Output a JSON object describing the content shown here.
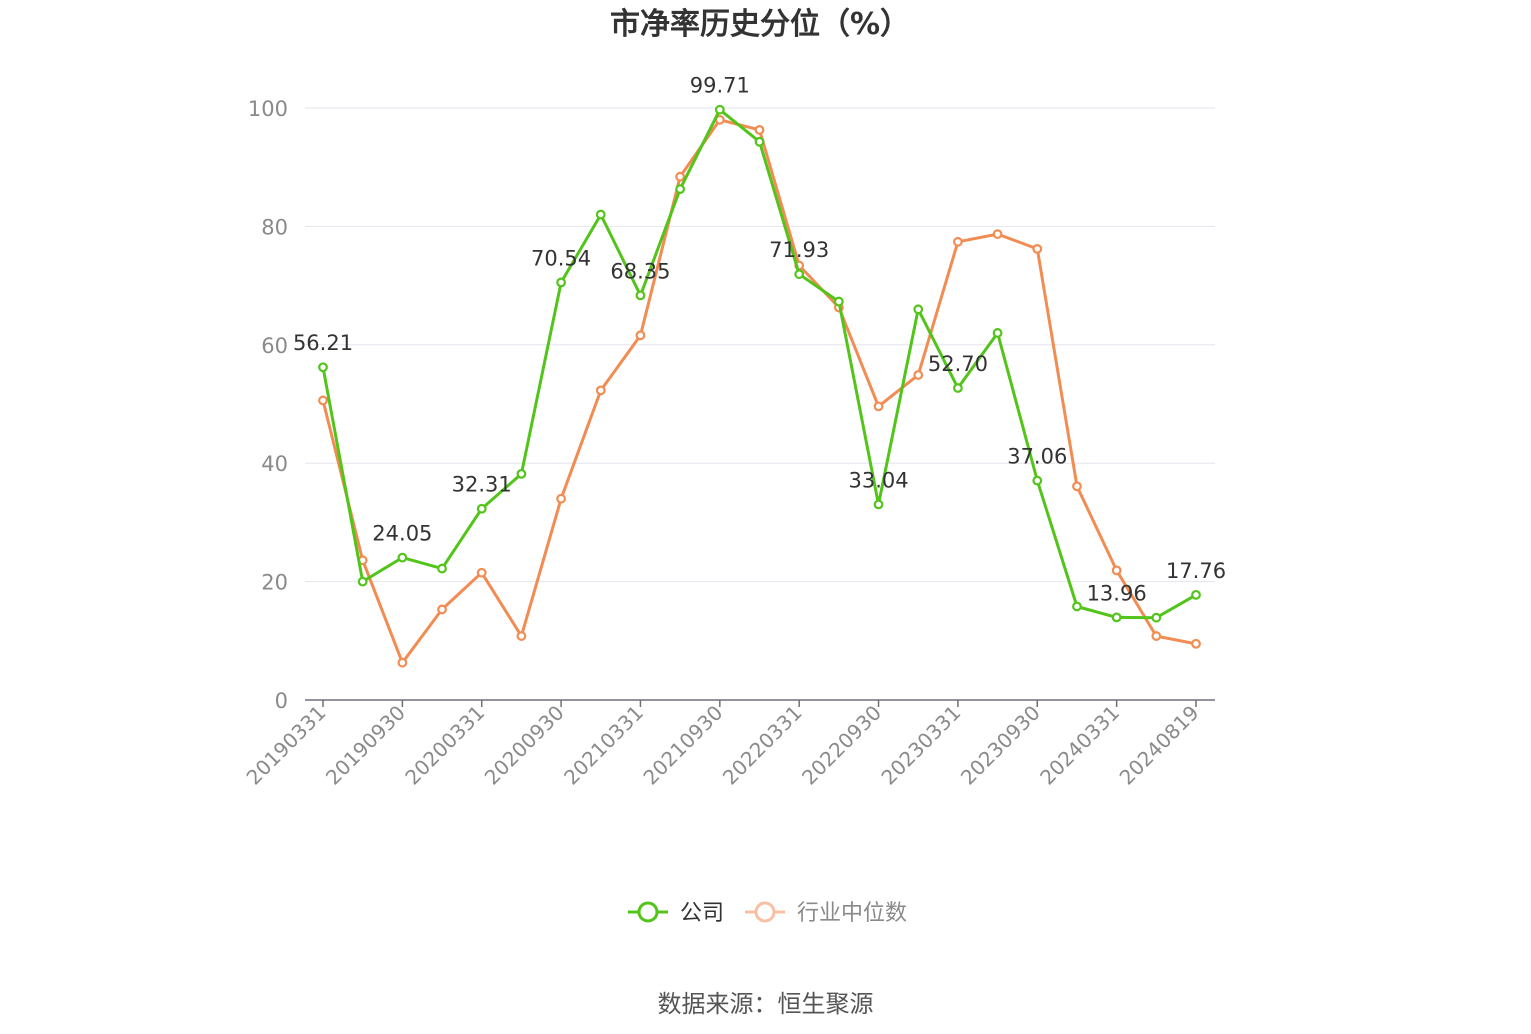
{
  "chart_data": {
    "type": "line",
    "title": "市净率历史分位（%）",
    "xlabel": "",
    "ylabel": "",
    "ylim": [
      0,
      100
    ],
    "yticks": [
      0,
      20,
      40,
      60,
      80,
      100
    ],
    "grid": true,
    "legend_position": "bottom",
    "x_tick_labels": [
      "20190331",
      "20190930",
      "20200331",
      "20200930",
      "20210331",
      "20210930",
      "20220331",
      "20220930",
      "20230331",
      "20230930",
      "20240331",
      "20240819"
    ],
    "x": [
      "20190331",
      "20190630",
      "20190930",
      "20191231",
      "20200331",
      "20200630",
      "20200930",
      "20201231",
      "20210331",
      "20210630",
      "20210930",
      "20211231",
      "20220331",
      "20220630",
      "20220930",
      "20221231",
      "20230331",
      "20230630",
      "20230930",
      "20231231",
      "20240331",
      "20240630",
      "20240819"
    ],
    "series": [
      {
        "name": "公司",
        "color": "#52c41a",
        "values": [
          56.21,
          20.0,
          24.05,
          22.2,
          32.31,
          38.2,
          70.54,
          82.0,
          68.35,
          86.3,
          99.71,
          94.3,
          71.93,
          67.3,
          33.04,
          66.0,
          52.7,
          62.0,
          37.06,
          15.8,
          13.96,
          13.9,
          17.76
        ],
        "labels": {
          "0": "56.21",
          "2": "24.05",
          "4": "32.31",
          "6": "70.54",
          "8": "68.35",
          "10": "99.71",
          "12": "71.93",
          "14": "33.04",
          "16": "52.70",
          "18": "37.06",
          "20": "13.96",
          "22": "17.76"
        }
      },
      {
        "name": "行业中位数",
        "color": "#f28c52",
        "values": [
          50.6,
          23.6,
          6.3,
          15.3,
          21.5,
          10.8,
          34.0,
          52.3,
          61.6,
          88.4,
          98.0,
          96.3,
          73.4,
          66.3,
          49.6,
          54.9,
          77.4,
          78.7,
          76.2,
          36.1,
          21.9,
          10.8,
          9.5
        ]
      }
    ]
  },
  "source_text": "数据来源：恒生聚源"
}
